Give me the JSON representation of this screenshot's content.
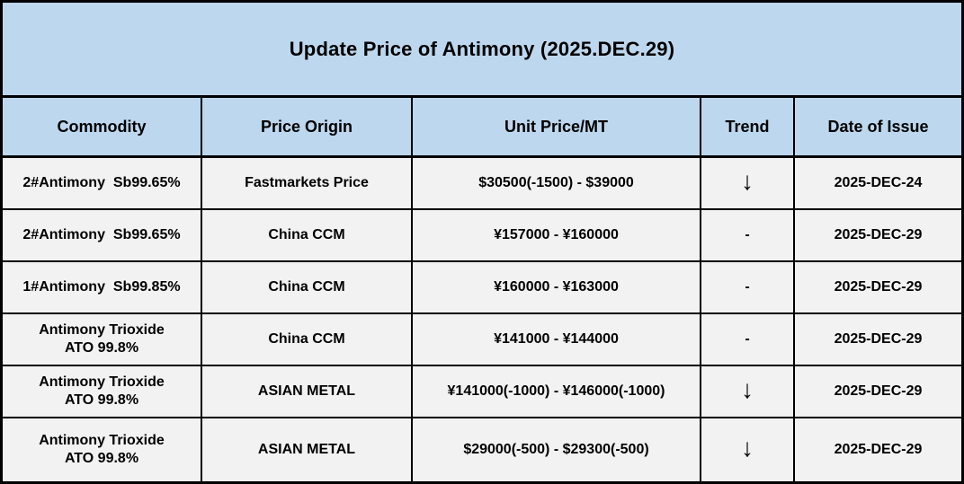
{
  "title": "Update Price of Antimony (2025.DEC.29)",
  "colors": {
    "header_bg": "#BDD7EE",
    "row_bg": "#F2F2F2",
    "border": "#000000",
    "text": "#000000"
  },
  "table": {
    "columns": [
      "Commodity",
      "Price Origin",
      "Unit Price/MT",
      "Trend",
      "Date of Issue"
    ],
    "rows": [
      {
        "commodity": "2#Antimony  Sb99.65%",
        "origin": "Fastmarkets Price",
        "price": "$30500(-1500) - $39000",
        "trend": "down",
        "trend_symbol": "↓",
        "date": "2025-DEC-24"
      },
      {
        "commodity": "2#Antimony  Sb99.65%",
        "origin": "China CCM",
        "price": "¥157000 - ¥160000",
        "trend": "unchanged",
        "trend_symbol": "-",
        "date": "2025-DEC-29"
      },
      {
        "commodity": "1#Antimony  Sb99.85%",
        "origin": "China CCM",
        "price": "¥160000 - ¥163000",
        "trend": "unchanged",
        "trend_symbol": "-",
        "date": "2025-DEC-29"
      },
      {
        "commodity": "Antimony Trioxide\nATO 99.8%",
        "origin": "China CCM",
        "price": "¥141000 - ¥144000",
        "trend": "unchanged",
        "trend_symbol": "-",
        "date": "2025-DEC-29"
      },
      {
        "commodity": "Antimony Trioxide\nATO 99.8%",
        "origin": "ASIAN METAL",
        "price": "¥141000(-1000) - ¥146000(-1000)",
        "trend": "down",
        "trend_symbol": "↓",
        "date": "2025-DEC-29"
      },
      {
        "commodity": "Antimony Trioxide\nATO 99.8%",
        "origin": "ASIAN METAL",
        "price": "$29000(-500) - $29300(-500)",
        "trend": "down",
        "trend_symbol": "↓",
        "date": "2025-DEC-29"
      }
    ]
  }
}
